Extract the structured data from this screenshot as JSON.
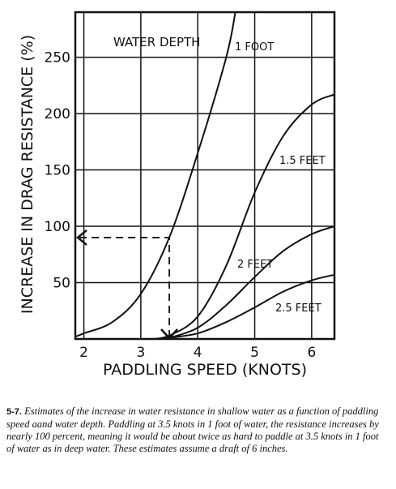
{
  "chart_data": {
    "type": "line",
    "xlabel": "PADDLING SPEED (KNOTS)",
    "ylabel": "INCREASE IN DRAG RESISTANCE (%)",
    "legend_title": "WATER DEPTH",
    "xlim": [
      1.85,
      6.4
    ],
    "ylim": [
      0,
      290
    ],
    "xticks": [
      2,
      3,
      4,
      5,
      6
    ],
    "yticks": [
      50,
      100,
      150,
      200,
      250
    ],
    "grid": true,
    "color": "#111",
    "series": [
      {
        "name": "1 FOOT",
        "x": [
          1.85,
          2,
          2.5,
          3,
          3.5,
          4,
          4.5,
          4.66
        ],
        "y": [
          2,
          5,
          15,
          40,
          90,
          165,
          250,
          290
        ]
      },
      {
        "name": "1.5 FEET",
        "x": [
          3.2,
          3.5,
          4,
          4.5,
          5,
          5.5,
          6,
          6.4
        ],
        "y": [
          0,
          3,
          20,
          65,
          130,
          180,
          208,
          217
        ]
      },
      {
        "name": "2 FEET",
        "x": [
          3.3,
          3.5,
          4,
          4.5,
          5,
          5.5,
          6,
          6.4
        ],
        "y": [
          0,
          1,
          10,
          30,
          55,
          78,
          93,
          100
        ]
      },
      {
        "name": "2.5 FEET",
        "x": [
          3.4,
          3.5,
          4,
          4.5,
          5,
          5.5,
          6,
          6.4
        ],
        "y": [
          0,
          1,
          5,
          15,
          28,
          42,
          52,
          57
        ]
      }
    ],
    "annotation": {
      "x": 3.5,
      "y": 90
    }
  },
  "caption": {
    "number": "5-7.",
    "text": "Estimates of the increase in water resistance in shallow water as a function of paddling speed aand water depth. Paddling at 3.5 knots in 1 foot of water, the resistance increases by nearly 100 percent, meaning it would be about twice as hard to paddle at 3.5 knots in 1 foot of water as in deep water. These estimates assume a draft of 6 inches."
  }
}
